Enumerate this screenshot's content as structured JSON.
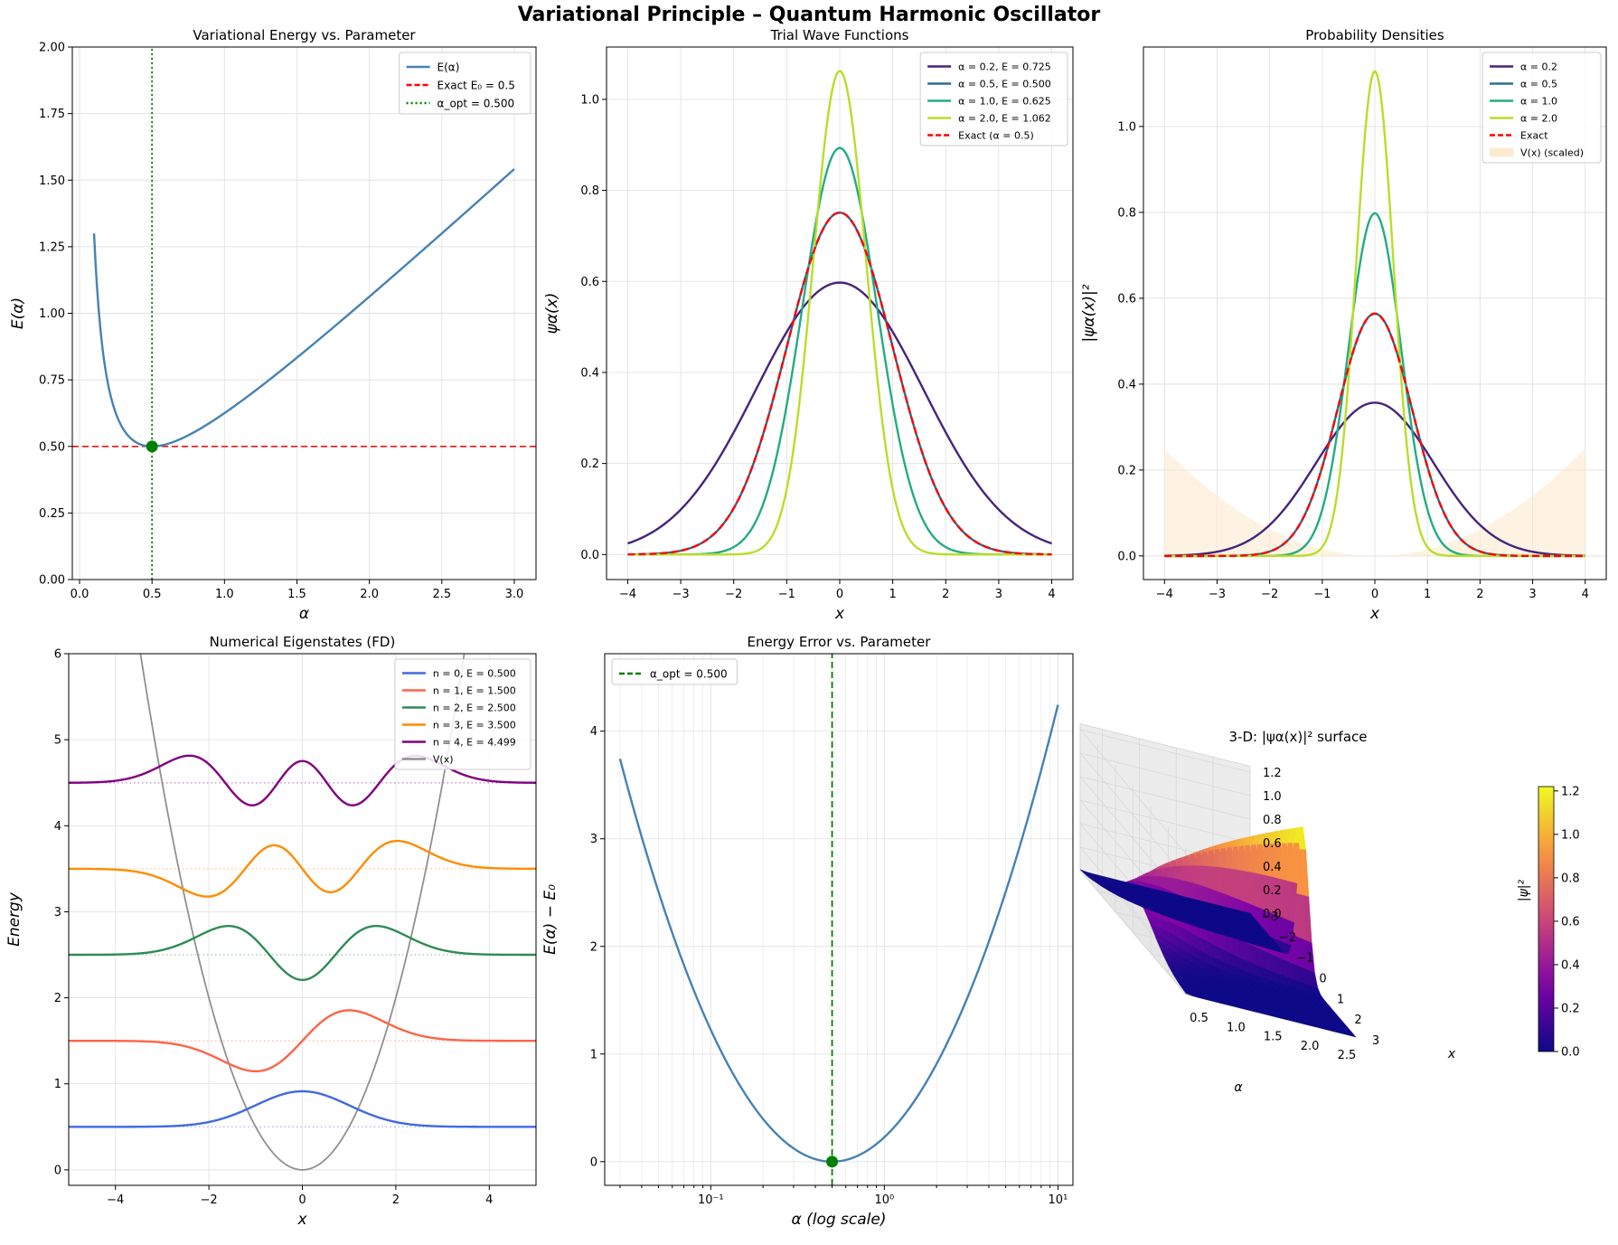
{
  "figure": {
    "title": "Variational Principle – Quantum Harmonic Oscillator"
  },
  "chart_data": [
    {
      "id": "p1",
      "type": "line",
      "title": "Variational Energy vs. Parameter",
      "xlabel": "α",
      "ylabel": "E(α)",
      "xlim": [
        -0.05,
        3.15
      ],
      "ylim": [
        0,
        2.0
      ],
      "xticks": [
        0.0,
        0.5,
        1.0,
        1.5,
        2.0,
        2.5,
        3.0
      ],
      "xtick_labels": [
        "0.0",
        "0.5",
        "1.0",
        "1.5",
        "2.0",
        "2.5",
        "3.0"
      ],
      "yticks": [
        0.0,
        0.25,
        0.5,
        0.75,
        1.0,
        1.25,
        1.5,
        1.75,
        2.0
      ],
      "ytick_labels": [
        "0.00",
        "0.25",
        "0.50",
        "0.75",
        "1.00",
        "1.25",
        "1.50",
        "1.75",
        "2.00"
      ],
      "grid": true,
      "legend": "top-right",
      "series": [
        {
          "name": "E(α)",
          "function": "E_alpha",
          "range": [
            0.1,
            3.0
          ],
          "color": "#4682b4",
          "style": "solid"
        },
        {
          "name": "Exact E₀ = 0.5",
          "hline": 0.5,
          "color": "#ff0000",
          "style": "dashed"
        },
        {
          "name": "α_opt = 0.500",
          "vline": 0.5,
          "color": "#008000",
          "style": "dotted"
        }
      ],
      "marker": {
        "x": 0.5,
        "y": 0.5,
        "color": "#008000"
      }
    },
    {
      "id": "p2",
      "type": "line",
      "title": "Trial Wave Functions",
      "xlabel": "x",
      "ylabel": "ψα(x)",
      "xlim": [
        -4.4,
        4.4
      ],
      "ylim": [
        -0.055,
        1.115
      ],
      "xticks": [
        -4,
        -3,
        -2,
        -1,
        0,
        1,
        2,
        3,
        4
      ],
      "xtick_labels": [
        "−4",
        "−3",
        "−2",
        "−1",
        "0",
        "1",
        "2",
        "3",
        "4"
      ],
      "yticks": [
        0.0,
        0.2,
        0.4,
        0.6,
        0.8,
        1.0
      ],
      "ytick_labels": [
        "0.0",
        "0.2",
        "0.4",
        "0.6",
        "0.8",
        "1.0"
      ],
      "grid": true,
      "legend": "top-right",
      "series": [
        {
          "name": "α = 0.2, E = 0.725",
          "function": "psi",
          "alpha": 0.2,
          "color": "#46247a",
          "style": "solid"
        },
        {
          "name": "α = 0.5, E = 0.500",
          "function": "psi",
          "alpha": 0.5,
          "color": "#2a6f8e",
          "style": "solid"
        },
        {
          "name": "α = 1.0, E = 0.625",
          "function": "psi",
          "alpha": 1.0,
          "color": "#25ab82",
          "style": "solid"
        },
        {
          "name": "α = 2.0, E = 1.062",
          "function": "psi",
          "alpha": 2.0,
          "color": "#b8de29",
          "style": "solid"
        },
        {
          "name": "Exact (α = 0.5)",
          "function": "psi",
          "alpha": 0.5,
          "color": "#ff0000",
          "style": "dashed"
        }
      ]
    },
    {
      "id": "p3",
      "type": "line",
      "title": "Probability Densities",
      "xlabel": "x",
      "ylabel": "|ψα(x)|²",
      "xlim": [
        -4.4,
        4.4
      ],
      "ylim": [
        -0.055,
        1.185
      ],
      "xticks": [
        -4,
        -3,
        -2,
        -1,
        0,
        1,
        2,
        3,
        4
      ],
      "xtick_labels": [
        "−4",
        "−3",
        "−2",
        "−1",
        "0",
        "1",
        "2",
        "3",
        "4"
      ],
      "yticks": [
        0.0,
        0.2,
        0.4,
        0.6,
        0.8,
        1.0
      ],
      "ytick_labels": [
        "0.0",
        "0.2",
        "0.4",
        "0.6",
        "0.8",
        "1.0"
      ],
      "grid": true,
      "legend": "top-right",
      "series": [
        {
          "name": "α = 0.2",
          "function": "psi2",
          "alpha": 0.2,
          "color": "#46247a",
          "style": "solid"
        },
        {
          "name": "α = 0.5",
          "function": "psi2",
          "alpha": 0.5,
          "color": "#2a6f8e",
          "style": "solid"
        },
        {
          "name": "α = 1.0",
          "function": "psi2",
          "alpha": 1.0,
          "color": "#25ab82",
          "style": "solid"
        },
        {
          "name": "α = 2.0",
          "function": "psi2",
          "alpha": 2.0,
          "color": "#b8de29",
          "style": "solid"
        },
        {
          "name": "Exact",
          "function": "psi2",
          "alpha": 0.5,
          "color": "#ff0000",
          "style": "dashed"
        },
        {
          "name": "V(x) (scaled)",
          "function": "V_scaled",
          "fill": true,
          "max": 0.25,
          "color": "#fdebd0"
        }
      ]
    },
    {
      "id": "p4",
      "type": "line",
      "title": "Numerical Eigenstates (FD)",
      "xlabel": "x",
      "ylabel": "Energy",
      "xlim": [
        -5,
        5
      ],
      "ylim": [
        -0.18,
        6.0
      ],
      "xticks": [
        -4,
        -2,
        0,
        2,
        4
      ],
      "xtick_labels": [
        "−4",
        "−2",
        "0",
        "2",
        "4"
      ],
      "yticks": [
        0,
        1,
        2,
        3,
        4,
        5,
        6
      ],
      "ytick_labels": [
        "0",
        "1",
        "2",
        "3",
        "4",
        "5",
        "6"
      ],
      "grid": true,
      "legend": "top-right",
      "series": [
        {
          "name": "n = 0, E = 0.500",
          "n": 0,
          "E": 0.5,
          "color": "#4169e1"
        },
        {
          "name": "n = 1, E = 1.500",
          "n": 1,
          "E": 1.5,
          "color": "#ff6347"
        },
        {
          "name": "n = 2, E = 2.500",
          "n": 2,
          "E": 2.5,
          "color": "#2e8b57"
        },
        {
          "name": "n = 3, E = 3.500",
          "n": 3,
          "E": 3.5,
          "color": "#ff8c00"
        },
        {
          "name": "n = 4, E = 4.499",
          "n": 4,
          "E": 4.499,
          "color": "#800080"
        },
        {
          "name": "V(x)",
          "function": "V",
          "color": "#909090"
        }
      ]
    },
    {
      "id": "p5",
      "type": "line",
      "title": "Energy Error vs. Parameter",
      "xlabel": "α (log scale)",
      "ylabel": "E(α) − E₀",
      "xscale": "log",
      "xlim": [
        0.0245,
        12.2
      ],
      "ylim": [
        -0.22,
        4.72
      ],
      "xticks": [
        0.1,
        1,
        10
      ],
      "xtick_labels": [
        "10⁻¹",
        "10⁰",
        "10¹"
      ],
      "yticks": [
        0,
        1,
        2,
        3,
        4
      ],
      "ytick_labels": [
        "0",
        "1",
        "2",
        "3",
        "4"
      ],
      "grid": true,
      "legend": "top-left",
      "series": [
        {
          "name": "E(α) − E₀",
          "function": "E_error",
          "range": [
            0.03,
            10
          ],
          "color": "#4682b4",
          "style": "solid"
        },
        {
          "name": "α_opt = 0.500",
          "vline": 0.5,
          "color": "#008000",
          "style": "dashed"
        }
      ],
      "marker": {
        "x": 0.5,
        "y": 0.0,
        "color": "#008000"
      }
    },
    {
      "id": "p6",
      "type": "surface",
      "title": "3-D: |ψα(x)|² surface",
      "xlabel": "α",
      "ylabel": "x",
      "zlabel": "|ψ|²",
      "xlim": [
        0.2,
        2.5
      ],
      "ylim": [
        -3,
        3
      ],
      "zlim": [
        0,
        1.2
      ],
      "xticks": [
        0.5,
        1.0,
        1.5,
        2.0,
        2.5
      ],
      "xtick_labels": [
        "0.5",
        "1.0",
        "1.5",
        "2.0",
        "2.5"
      ],
      "yticks": [
        -3,
        -2,
        -1,
        0,
        1,
        2,
        3
      ],
      "ytick_labels": [
        "−3",
        "−2",
        "−1",
        "0",
        "1",
        "2",
        "3"
      ],
      "zticks": [
        0.0,
        0.2,
        0.4,
        0.6,
        0.8,
        1.0,
        1.2
      ],
      "ztick_labels": [
        "0.0",
        "0.2",
        "0.4",
        "0.6",
        "0.8",
        "1.0",
        "1.2"
      ],
      "colormap": "plasma",
      "colorbar": {
        "label": "|ψ|²",
        "range": [
          0,
          1.22
        ],
        "ticks": [
          0.0,
          0.2,
          0.4,
          0.6,
          0.8,
          1.0,
          1.2
        ],
        "tick_labels": [
          "0.0",
          "0.2",
          "0.4",
          "0.6",
          "0.8",
          "1.0",
          "1.2"
        ]
      }
    }
  ]
}
